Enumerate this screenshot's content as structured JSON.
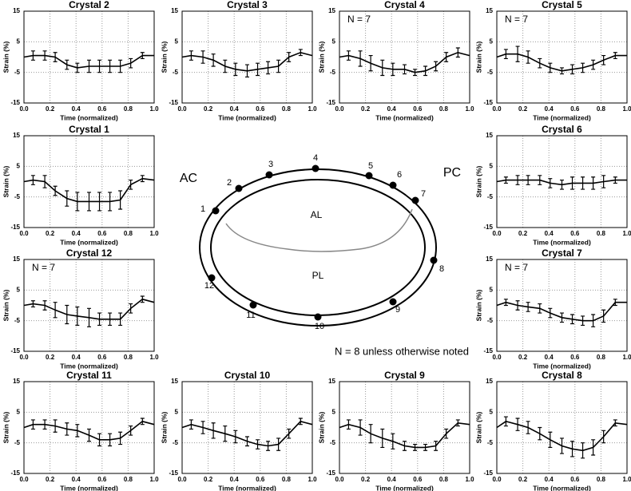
{
  "chart_data": [
    {
      "type": "line",
      "title": "Crystal 2",
      "xlabel": "Time (normalized)",
      "ylabel": "Strain (%)",
      "x": [
        0,
        0.07,
        0.16,
        0.24,
        0.33,
        0.41,
        0.5,
        0.58,
        0.66,
        0.74,
        0.82,
        0.91,
        1.0
      ],
      "series": [
        {
          "color": "#000000",
          "values": [
            0,
            0.5,
            0.5,
            0,
            -2.5,
            -3.5,
            -3,
            -3,
            -3,
            -3,
            -2,
            0.5,
            0.5
          ],
          "errors": [
            null,
            1.5,
            1.5,
            1.5,
            1.5,
            1.5,
            2,
            2,
            2,
            2,
            1.5,
            1,
            null
          ]
        }
      ],
      "xlim": [
        0,
        1
      ],
      "ylim": [
        -15,
        15
      ],
      "xticks": [
        {
          "value": 0,
          "label": "0.0"
        },
        {
          "value": 0.2,
          "label": "0.2"
        },
        {
          "value": 0.4,
          "label": "0.4"
        },
        {
          "value": 0.6,
          "label": "0.6"
        },
        {
          "value": 0.8,
          "label": "0.8"
        },
        {
          "value": 1,
          "label": "1.0"
        }
      ],
      "yticks": [
        -15,
        -5,
        5,
        15
      ],
      "grid": true
    },
    {
      "type": "line",
      "title": "Crystal 3",
      "xlabel": "Time (normalized)",
      "ylabel": "Strain (%)",
      "x": [
        0,
        0.07,
        0.16,
        0.24,
        0.33,
        0.41,
        0.5,
        0.58,
        0.66,
        0.74,
        0.82,
        0.91,
        1.0
      ],
      "series": [
        {
          "color": "#000000",
          "values": [
            0,
            0.5,
            0,
            -1,
            -3,
            -4,
            -4.5,
            -4,
            -3.5,
            -3,
            0,
            1.5,
            0.5
          ],
          "errors": [
            null,
            1.5,
            2,
            2,
            2,
            2,
            2,
            2,
            2,
            2,
            1.5,
            1,
            null
          ]
        }
      ],
      "xlim": [
        0,
        1
      ],
      "ylim": [
        -15,
        15
      ],
      "xticks": [
        {
          "value": 0,
          "label": "0.0"
        },
        {
          "value": 0.2,
          "label": "0.2"
        },
        {
          "value": 0.4,
          "label": "0.4"
        },
        {
          "value": 0.6,
          "label": "0.6"
        },
        {
          "value": 0.8,
          "label": "0.8"
        },
        {
          "value": 1,
          "label": "1.0"
        }
      ],
      "yticks": [
        -15,
        -5,
        5,
        15
      ],
      "grid": true
    },
    {
      "type": "line",
      "title": "Crystal 4",
      "annotation": "N = 7",
      "xlabel": "Time (normalized)",
      "ylabel": "Strain (%)",
      "x": [
        0,
        0.07,
        0.16,
        0.24,
        0.33,
        0.41,
        0.5,
        0.58,
        0.66,
        0.74,
        0.82,
        0.91,
        1.0
      ],
      "series": [
        {
          "color": "#000000",
          "values": [
            0,
            0.5,
            -0.5,
            -2,
            -3.5,
            -4,
            -4,
            -5,
            -4.5,
            -3,
            0,
            1.5,
            0.5
          ],
          "errors": [
            null,
            1.5,
            2.5,
            2.5,
            2.5,
            2,
            1.5,
            1,
            1.5,
            1.5,
            1.5,
            1.5,
            null
          ]
        }
      ],
      "xlim": [
        0,
        1
      ],
      "ylim": [
        -15,
        15
      ],
      "xticks": [
        {
          "value": 0,
          "label": "0.0"
        },
        {
          "value": 0.2,
          "label": "0.2"
        },
        {
          "value": 0.4,
          "label": "0.4"
        },
        {
          "value": 0.6,
          "label": "0.6"
        },
        {
          "value": 0.8,
          "label": "0.8"
        },
        {
          "value": 1,
          "label": "1.0"
        }
      ],
      "yticks": [
        -15,
        -5,
        5,
        15
      ],
      "grid": true
    },
    {
      "type": "line",
      "title": "Crystal 5",
      "annotation": "N = 7",
      "xlabel": "Time (normalized)",
      "ylabel": "Strain (%)",
      "x": [
        0,
        0.07,
        0.16,
        0.24,
        0.33,
        0.41,
        0.5,
        0.58,
        0.66,
        0.74,
        0.82,
        0.91,
        1.0
      ],
      "series": [
        {
          "color": "#000000",
          "values": [
            0,
            1,
            1,
            0,
            -2,
            -3.5,
            -4.5,
            -4,
            -3.5,
            -2.5,
            -1,
            0.5,
            0.5
          ],
          "errors": [
            null,
            1.5,
            2.5,
            2,
            1.5,
            1.5,
            1,
            1.5,
            1.5,
            1.5,
            1.5,
            1,
            null
          ]
        }
      ],
      "xlim": [
        0,
        1
      ],
      "ylim": [
        -15,
        15
      ],
      "xticks": [
        {
          "value": 0,
          "label": "0.0"
        },
        {
          "value": 0.2,
          "label": "0.2"
        },
        {
          "value": 0.4,
          "label": "0.4"
        },
        {
          "value": 0.6,
          "label": "0.6"
        },
        {
          "value": 0.8,
          "label": "0.8"
        },
        {
          "value": 1,
          "label": "1.0"
        }
      ],
      "yticks": [
        -15,
        -5,
        5,
        15
      ],
      "grid": true
    },
    {
      "type": "line",
      "title": "Crystal 1",
      "xlabel": "Time (normalized)",
      "ylabel": "Strain (%)",
      "x": [
        0,
        0.07,
        0.16,
        0.24,
        0.33,
        0.41,
        0.5,
        0.58,
        0.66,
        0.74,
        0.82,
        0.91,
        1.0
      ],
      "series": [
        {
          "color": "#000000",
          "values": [
            0,
            0.5,
            0,
            -3,
            -5.5,
            -6.5,
            -6.5,
            -6.5,
            -6.5,
            -6,
            -1,
            1,
            0.5
          ],
          "errors": [
            null,
            1.5,
            2,
            1.5,
            2.5,
            3,
            3,
            3,
            3,
            3,
            1.5,
            1,
            null
          ]
        }
      ],
      "xlim": [
        0,
        1
      ],
      "ylim": [
        -15,
        15
      ],
      "xticks": [
        {
          "value": 0,
          "label": "0.0"
        },
        {
          "value": 0.2,
          "label": "0.2"
        },
        {
          "value": 0.4,
          "label": "0.4"
        },
        {
          "value": 0.6,
          "label": "0.6"
        },
        {
          "value": 0.8,
          "label": "0.8"
        },
        {
          "value": 1,
          "label": "1.0"
        }
      ],
      "yticks": [
        -15,
        -5,
        5,
        15
      ],
      "grid": true
    },
    {
      "type": "line",
      "title": "Crystal 6",
      "xlabel": "Time (normalized)",
      "ylabel": "Strain (%)",
      "x": [
        0,
        0.07,
        0.16,
        0.24,
        0.33,
        0.41,
        0.5,
        0.58,
        0.66,
        0.74,
        0.82,
        0.91,
        1.0
      ],
      "series": [
        {
          "color": "#000000",
          "values": [
            0,
            0.5,
            0.5,
            0.5,
            0.5,
            -0.5,
            -1,
            -0.5,
            -0.5,
            -0.5,
            0,
            0.5,
            0.5
          ],
          "errors": [
            null,
            1,
            1.5,
            1.5,
            1.5,
            1.5,
            1.5,
            2,
            2,
            2,
            2,
            1,
            null
          ]
        }
      ],
      "xlim": [
        0,
        1
      ],
      "ylim": [
        -15,
        15
      ],
      "xticks": [
        {
          "value": 0,
          "label": "0.0"
        },
        {
          "value": 0.2,
          "label": "0.2"
        },
        {
          "value": 0.4,
          "label": "0.4"
        },
        {
          "value": 0.6,
          "label": "0.6"
        },
        {
          "value": 0.8,
          "label": "0.8"
        },
        {
          "value": 1,
          "label": "1.0"
        }
      ],
      "yticks": [
        -15,
        -5,
        5,
        15
      ],
      "grid": true
    },
    {
      "type": "line",
      "title": "Crystal 12",
      "annotation": "N = 7",
      "xlabel": "Time (normalized)",
      "ylabel": "Strain (%)",
      "x": [
        0,
        0.07,
        0.16,
        0.24,
        0.33,
        0.41,
        0.5,
        0.58,
        0.66,
        0.74,
        0.82,
        0.91,
        1.0
      ],
      "series": [
        {
          "color": "#000000",
          "values": [
            0,
            0.5,
            0,
            -1.5,
            -3,
            -3.5,
            -4,
            -4.5,
            -4.5,
            -4.5,
            -1,
            2,
            1
          ],
          "errors": [
            null,
            1,
            1.5,
            2.5,
            3,
            3,
            3,
            2,
            2,
            2,
            1.5,
            1,
            null
          ]
        }
      ],
      "xlim": [
        0,
        1
      ],
      "ylim": [
        -15,
        15
      ],
      "xticks": [
        {
          "value": 0,
          "label": "0.0"
        },
        {
          "value": 0.2,
          "label": "0.2"
        },
        {
          "value": 0.4,
          "label": "0.4"
        },
        {
          "value": 0.6,
          "label": "0.6"
        },
        {
          "value": 0.8,
          "label": "0.8"
        },
        {
          "value": 1,
          "label": "1.0"
        }
      ],
      "yticks": [
        -15,
        -5,
        5,
        15
      ],
      "grid": true
    },
    {
      "type": "line",
      "title": "Crystal 7",
      "annotation": "N = 7",
      "xlabel": "Time (normalized)",
      "ylabel": "Strain (%)",
      "x": [
        0,
        0.07,
        0.16,
        0.24,
        0.33,
        0.41,
        0.5,
        0.58,
        0.66,
        0.74,
        0.82,
        0.91,
        1.0
      ],
      "series": [
        {
          "color": "#000000",
          "values": [
            0,
            1,
            0,
            -0.5,
            -1,
            -2.5,
            -4,
            -4.5,
            -5,
            -5,
            -3.5,
            1,
            1
          ],
          "errors": [
            null,
            1,
            1.5,
            1.5,
            1.5,
            1.5,
            1.5,
            1.5,
            1.5,
            2,
            2,
            1,
            null
          ]
        }
      ],
      "xlim": [
        0,
        1
      ],
      "ylim": [
        -15,
        15
      ],
      "xticks": [
        {
          "value": 0,
          "label": "0.0"
        },
        {
          "value": 0.2,
          "label": "0.2"
        },
        {
          "value": 0.4,
          "label": "0.4"
        },
        {
          "value": 0.6,
          "label": "0.6"
        },
        {
          "value": 0.8,
          "label": "0.8"
        },
        {
          "value": 1,
          "label": "1.0"
        }
      ],
      "yticks": [
        -15,
        -5,
        5,
        15
      ],
      "grid": true
    },
    {
      "type": "line",
      "title": "Crystal 11",
      "xlabel": "Time (normalized)",
      "ylabel": "Strain (%)",
      "x": [
        0,
        0.07,
        0.16,
        0.24,
        0.33,
        0.41,
        0.5,
        0.58,
        0.66,
        0.74,
        0.82,
        0.91,
        1.0
      ],
      "series": [
        {
          "color": "#000000",
          "values": [
            0,
            1,
            1,
            0.5,
            -0.5,
            -1,
            -2.5,
            -4,
            -4,
            -3.5,
            -1,
            2,
            1
          ],
          "errors": [
            null,
            1.5,
            1.5,
            2,
            2,
            2,
            2,
            2,
            2,
            2,
            1.5,
            1,
            null
          ]
        }
      ],
      "xlim": [
        0,
        1
      ],
      "ylim": [
        -15,
        15
      ],
      "xticks": [
        {
          "value": 0,
          "label": "0.0"
        },
        {
          "value": 0.2,
          "label": "0.2"
        },
        {
          "value": 0.4,
          "label": "0.4"
        },
        {
          "value": 0.6,
          "label": "0.6"
        },
        {
          "value": 0.8,
          "label": "0.8"
        },
        {
          "value": 1,
          "label": "1.0"
        }
      ],
      "yticks": [
        -15,
        -5,
        5,
        15
      ],
      "grid": true
    },
    {
      "type": "line",
      "title": "Crystal 10",
      "xlabel": "Time (normalized)",
      "ylabel": "Strain (%)",
      "x": [
        0,
        0.07,
        0.16,
        0.24,
        0.33,
        0.41,
        0.5,
        0.58,
        0.66,
        0.74,
        0.82,
        0.91,
        1.0
      ],
      "series": [
        {
          "color": "#000000",
          "values": [
            0,
            1,
            0,
            -1,
            -2,
            -3,
            -4.5,
            -5.5,
            -6,
            -5.5,
            -2,
            2,
            1
          ],
          "errors": [
            null,
            1.5,
            2,
            2.5,
            2.5,
            2,
            1.5,
            1.5,
            1.5,
            2,
            1.5,
            1,
            null
          ]
        }
      ],
      "xlim": [
        0,
        1
      ],
      "ylim": [
        -15,
        15
      ],
      "xticks": [
        {
          "value": 0,
          "label": "0.0"
        },
        {
          "value": 0.2,
          "label": "0.2"
        },
        {
          "value": 0.4,
          "label": "0.4"
        },
        {
          "value": 0.6,
          "label": "0.6"
        },
        {
          "value": 0.8,
          "label": "0.8"
        },
        {
          "value": 1,
          "label": "1.0"
        }
      ],
      "yticks": [
        -15,
        -5,
        5,
        15
      ],
      "grid": true
    },
    {
      "type": "line",
      "title": "Crystal 9",
      "xlabel": "Time (normalized)",
      "ylabel": "Strain (%)",
      "x": [
        0,
        0.07,
        0.16,
        0.24,
        0.33,
        0.41,
        0.5,
        0.58,
        0.66,
        0.74,
        0.82,
        0.91,
        1.0
      ],
      "series": [
        {
          "color": "#000000",
          "values": [
            0,
            1,
            0,
            -2,
            -3.5,
            -4.5,
            -6,
            -6.5,
            -6.5,
            -6,
            -2,
            1.5,
            1
          ],
          "errors": [
            null,
            1.5,
            2.5,
            3,
            3,
            2.5,
            1.5,
            1,
            1,
            1.5,
            1.5,
            1,
            null
          ]
        }
      ],
      "xlim": [
        0,
        1
      ],
      "ylim": [
        -15,
        15
      ],
      "xticks": [
        {
          "value": 0,
          "label": "0.0"
        },
        {
          "value": 0.2,
          "label": "0.2"
        },
        {
          "value": 0.4,
          "label": "0.4"
        },
        {
          "value": 0.6,
          "label": "0.6"
        },
        {
          "value": 0.8,
          "label": "0.8"
        },
        {
          "value": 1,
          "label": "1.0"
        }
      ],
      "yticks": [
        -15,
        -5,
        5,
        15
      ],
      "grid": true
    },
    {
      "type": "line",
      "title": "Crystal 8",
      "xlabel": "Time (normalized)",
      "ylabel": "Strain (%)",
      "x": [
        0,
        0.07,
        0.16,
        0.24,
        0.33,
        0.41,
        0.5,
        0.58,
        0.66,
        0.74,
        0.82,
        0.91,
        1.0
      ],
      "series": [
        {
          "color": "#000000",
          "values": [
            0,
            2,
            1,
            0,
            -2,
            -4,
            -6,
            -7,
            -7.5,
            -6.5,
            -3,
            1.5,
            1
          ],
          "errors": [
            null,
            1.5,
            2,
            2,
            2,
            2.5,
            2.5,
            2.5,
            2.5,
            2.5,
            2,
            1,
            null
          ]
        }
      ],
      "xlim": [
        0,
        1
      ],
      "ylim": [
        -15,
        15
      ],
      "xticks": [
        {
          "value": 0,
          "label": "0.0"
        },
        {
          "value": 0.2,
          "label": "0.2"
        },
        {
          "value": 0.4,
          "label": "0.4"
        },
        {
          "value": 0.6,
          "label": "0.6"
        },
        {
          "value": 0.8,
          "label": "0.8"
        },
        {
          "value": 1,
          "label": "1.0"
        }
      ],
      "yticks": [
        -15,
        -5,
        5,
        15
      ],
      "grid": true
    }
  ],
  "diagram": {
    "left": "AC",
    "right": "PC",
    "upper": "AL",
    "lower": "PL",
    "note": "N = 8 unless otherwise noted",
    "crystals": [
      "1",
      "2",
      "3",
      "4",
      "5",
      "6",
      "7",
      "8",
      "9",
      "10",
      "11",
      "12"
    ]
  }
}
